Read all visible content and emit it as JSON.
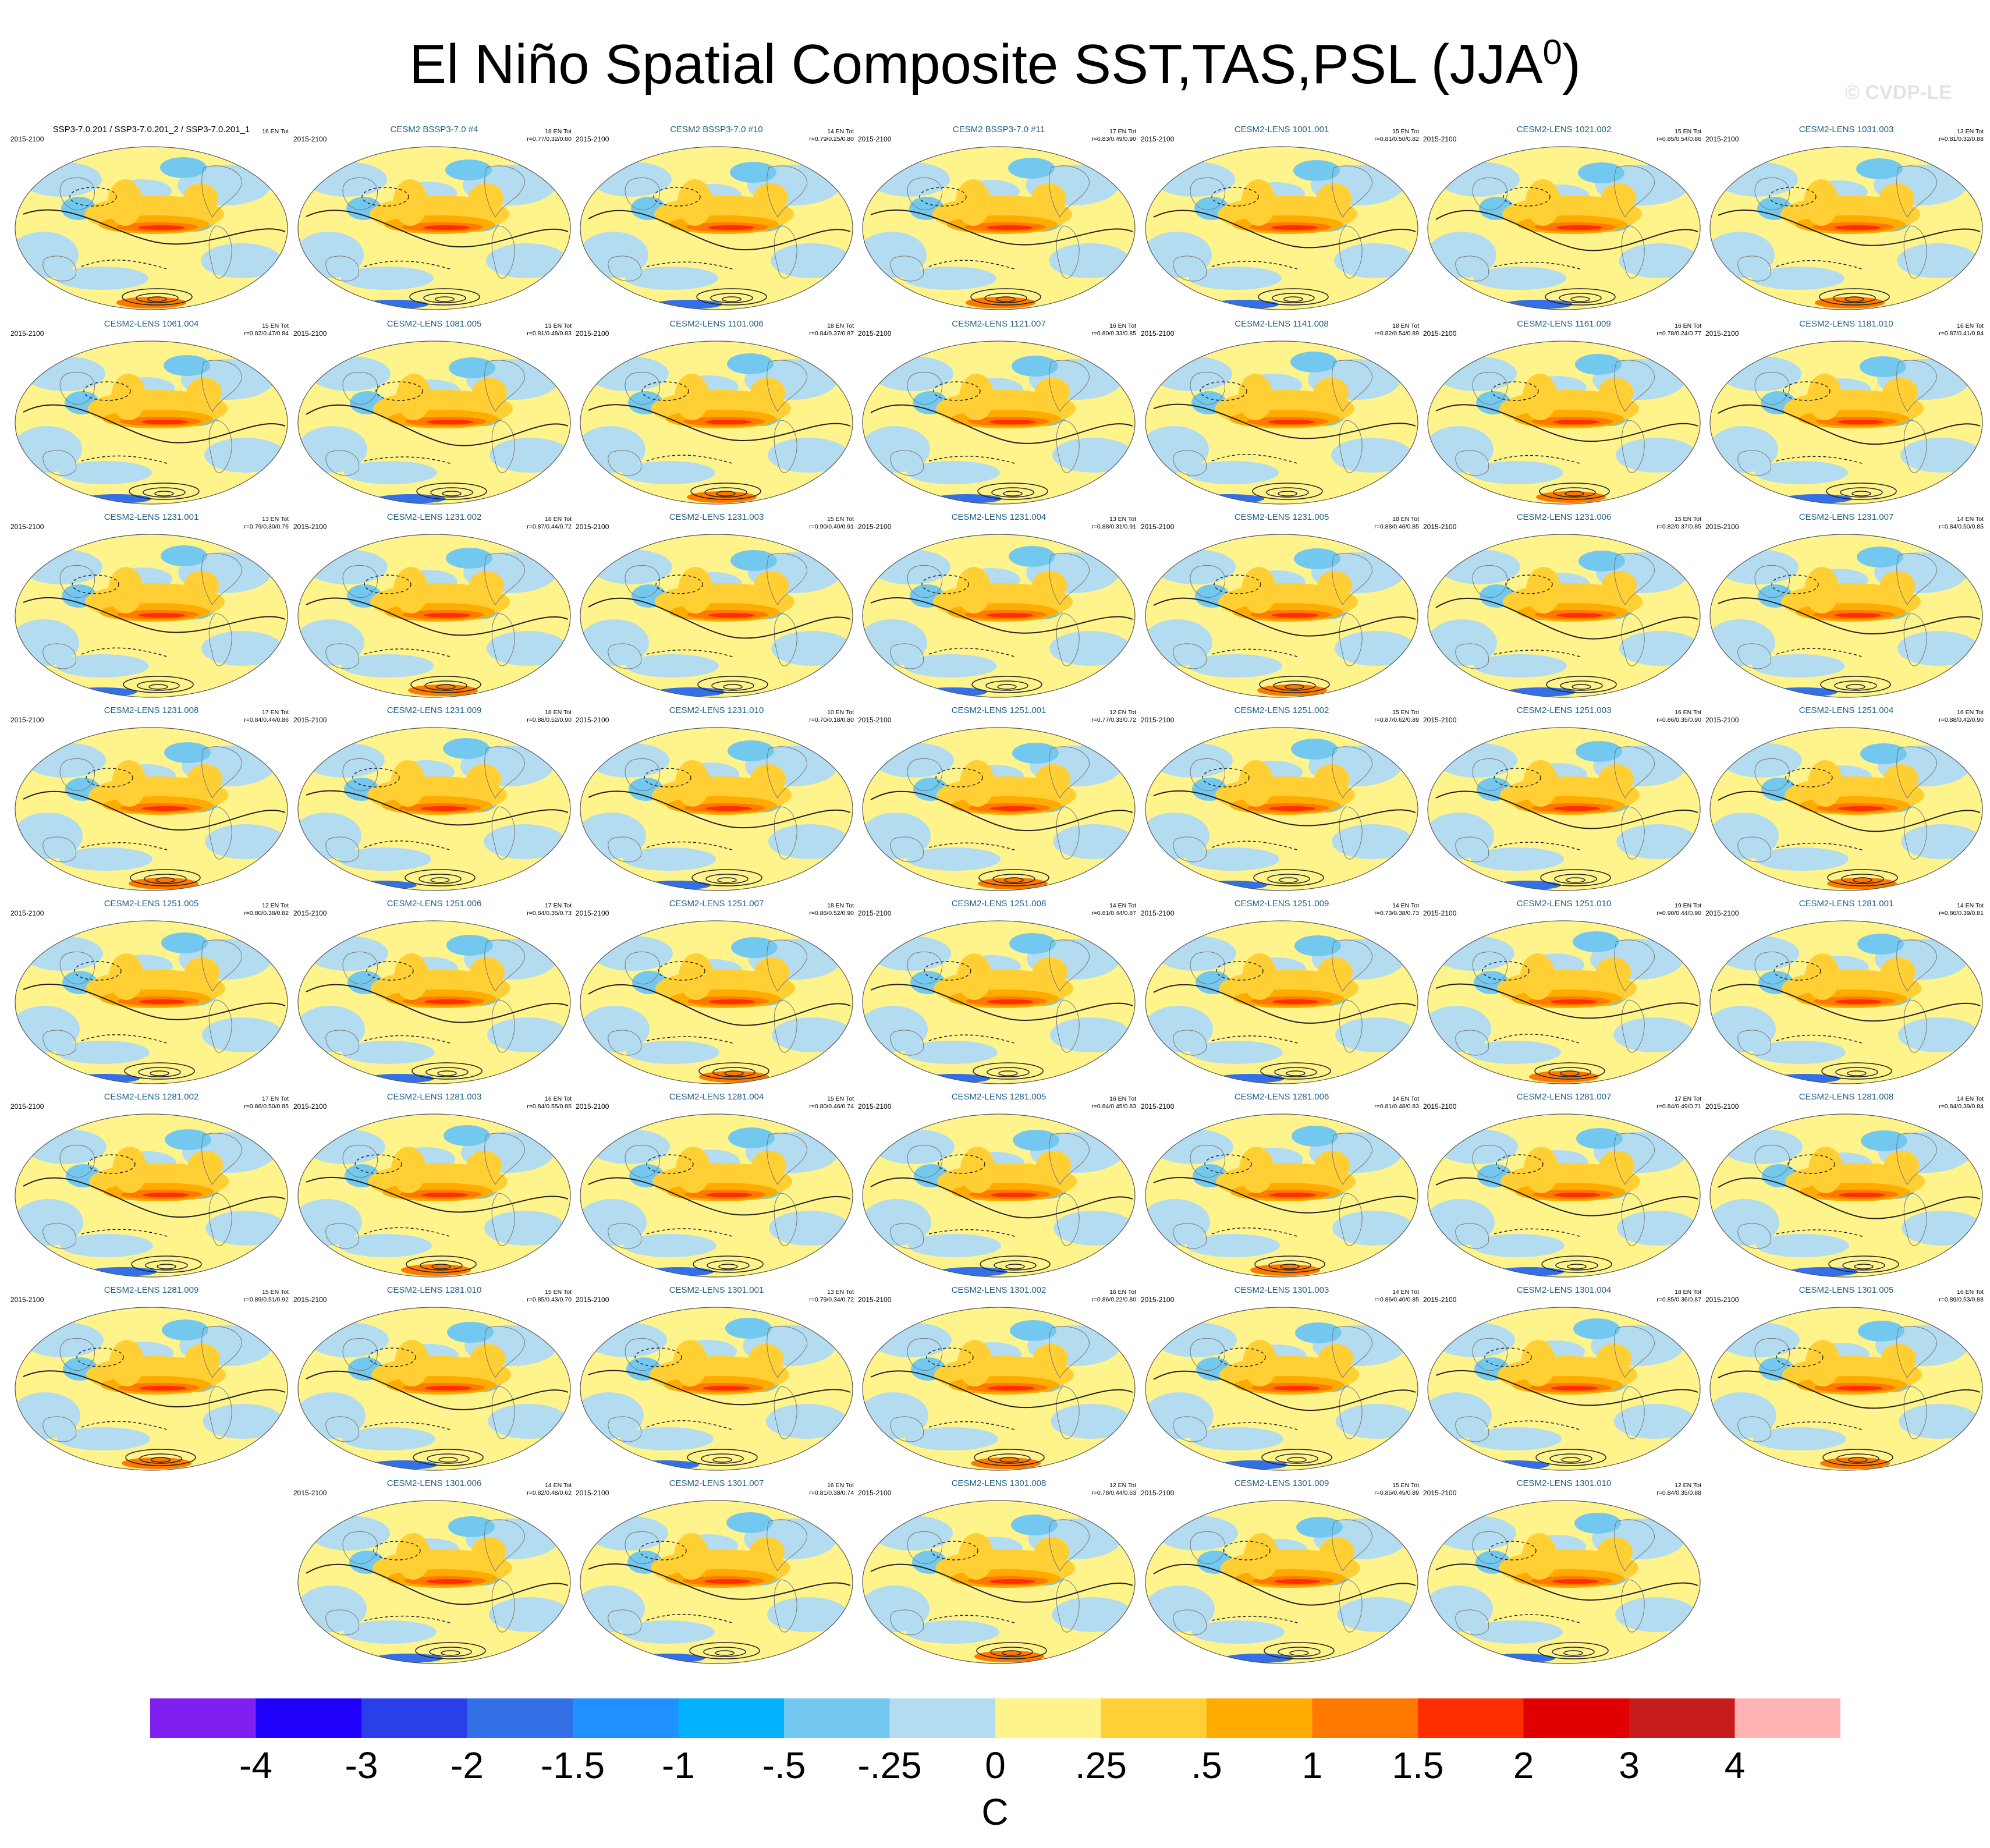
{
  "title": {
    "main": "El Niño Spatial Composite SST,TAS,PSL (JJA",
    "superscript": "0",
    "close": ")"
  },
  "watermark": "© CVDP-LE",
  "period_label": "2015-2100",
  "panels": [
    {
      "title": "SSP3-7.0.201 / SSP3-7.0.201_2 / SSP3-7.0.201_1",
      "count": "16 EN Tot",
      "corr": ""
    },
    {
      "title": "CESM2 BSSP3-7.0 #4",
      "count": "18 EN Tot",
      "corr": "r=0.77/0.32/0.80"
    },
    {
      "title": "CESM2 BSSP3-7.0 #10",
      "count": "14 EN Tot",
      "corr": "r=0.79/0.25/0.80"
    },
    {
      "title": "CESM2 BSSP3-7.0 #11",
      "count": "17 EN Tot",
      "corr": "r=0.83/0.49/0.90"
    },
    {
      "title": "CESM2-LENS 1001.001",
      "count": "15 EN Tot",
      "corr": "r=0.81/0.50/0.82"
    },
    {
      "title": "CESM2-LENS 1021.002",
      "count": "15 EN Tot",
      "corr": "r=0.85/0.54/0.86"
    },
    {
      "title": "CESM2-LENS 1031.003",
      "count": "13 EN Tot",
      "corr": "r=0.81/0.32/0.88"
    },
    {
      "title": "CESM2-LENS 1061.004",
      "count": "15 EN Tot",
      "corr": "r=0.82/0.47/0.84"
    },
    {
      "title": "CESM2-LENS 1081.005",
      "count": "13 EN Tot",
      "corr": "r=0.81/0.48/0.83"
    },
    {
      "title": "CESM2-LENS 1101.006",
      "count": "18 EN Tot",
      "corr": "r=0.84/0.37/0.87"
    },
    {
      "title": "CESM2-LENS 1121.007",
      "count": "16 EN Tot",
      "corr": "r=0.80/0.33/0.85"
    },
    {
      "title": "CESM2-LENS 1141.008",
      "count": "18 EN Tot",
      "corr": "r=0.82/0.54/0.89"
    },
    {
      "title": "CESM2-LENS 1161.009",
      "count": "16 EN Tot",
      "corr": "r=0.78/0.24/0.77"
    },
    {
      "title": "CESM2-LENS 1181.010",
      "count": "16 EN Tot",
      "corr": "r=0.87/0.41/0.84"
    },
    {
      "title": "CESM2-LENS 1231.001",
      "count": "13 EN Tot",
      "corr": "r=0.79/0.30/0.76"
    },
    {
      "title": "CESM2-LENS 1231.002",
      "count": "18 EN Tot",
      "corr": "r=0.87/0.44/0.72"
    },
    {
      "title": "CESM2-LENS 1231.003",
      "count": "15 EN Tot",
      "corr": "r=0.90/0.40/0.91"
    },
    {
      "title": "CESM2-LENS 1231.004",
      "count": "13 EN Tot",
      "corr": "r=0.88/0.31/0.91"
    },
    {
      "title": "CESM2-LENS 1231.005",
      "count": "18 EN Tot",
      "corr": "r=0.88/0.46/0.85"
    },
    {
      "title": "CESM2-LENS 1231.006",
      "count": "15 EN Tot",
      "corr": "r=0.82/0.37/0.85"
    },
    {
      "title": "CESM2-LENS 1231.007",
      "count": "14 EN Tot",
      "corr": "r=0.84/0.50/0.85"
    },
    {
      "title": "CESM2-LENS 1231.008",
      "count": "17 EN Tot",
      "corr": "r=0.84/0.44/0.86"
    },
    {
      "title": "CESM2-LENS 1231.009",
      "count": "18 EN Tot",
      "corr": "r=0.88/0.52/0.90"
    },
    {
      "title": "CESM2-LENS 1231.010",
      "count": "10 EN Tot",
      "corr": "r=0.70/0.18/0.80"
    },
    {
      "title": "CESM2-LENS 1251.001",
      "count": "12 EN Tot",
      "corr": "r=0.77/0.33/0.72"
    },
    {
      "title": "CESM2-LENS 1251.002",
      "count": "15 EN Tot",
      "corr": "r=0.87/0.62/0.89"
    },
    {
      "title": "CESM2-LENS 1251.003",
      "count": "16 EN Tot",
      "corr": "r=0.86/0.35/0.90"
    },
    {
      "title": "CESM2-LENS 1251.004",
      "count": "16 EN Tot",
      "corr": "r=0.88/0.42/0.90"
    },
    {
      "title": "CESM2-LENS 1251.005",
      "count": "12 EN Tot",
      "corr": "r=0.80/0.38/0.82"
    },
    {
      "title": "CESM2-LENS 1251.006",
      "count": "17 EN Tot",
      "corr": "r=0.84/0.35/0.73"
    },
    {
      "title": "CESM2-LENS 1251.007",
      "count": "18 EN Tot",
      "corr": "r=0.86/0.52/0.90"
    },
    {
      "title": "CESM2-LENS 1251.008",
      "count": "14 EN Tot",
      "corr": "r=0.81/0.44/0.87"
    },
    {
      "title": "CESM2-LENS 1251.009",
      "count": "14 EN Tot",
      "corr": "r=0.73/0.38/0.73"
    },
    {
      "title": "CESM2-LENS 1251.010",
      "count": "19 EN Tot",
      "corr": "r=0.90/0.44/0.90"
    },
    {
      "title": "CESM2-LENS 1281.001",
      "count": "14 EN Tot",
      "corr": "r=0.86/0.39/0.81"
    },
    {
      "title": "CESM2-LENS 1281.002",
      "count": "17 EN Tot",
      "corr": "r=0.86/0.50/0.85"
    },
    {
      "title": "CESM2-LENS 1281.003",
      "count": "16 EN Tot",
      "corr": "r=0.84/0.55/0.85"
    },
    {
      "title": "CESM2-LENS 1281.004",
      "count": "15 EN Tot",
      "corr": "r=0.80/0.46/0.74"
    },
    {
      "title": "CESM2-LENS 1281.005",
      "count": "16 EN Tot",
      "corr": "r=0.84/0.45/0.83"
    },
    {
      "title": "CESM2-LENS 1281.006",
      "count": "14 EN Tot",
      "corr": "r=0.81/0.48/0.83"
    },
    {
      "title": "CESM2-LENS 1281.007",
      "count": "17 EN Tot",
      "corr": "r=0.84/0.49/0.71"
    },
    {
      "title": "CESM2-LENS 1281.008",
      "count": "14 EN Tot",
      "corr": "r=0.84/0.39/0.84"
    },
    {
      "title": "CESM2-LENS 1281.009",
      "count": "15 EN Tot",
      "corr": "r=0.89/0.51/0.92"
    },
    {
      "title": "CESM2-LENS 1281.010",
      "count": "15 EN Tot",
      "corr": "r=0.85/0.43/0.70"
    },
    {
      "title": "CESM2-LENS 1301.001",
      "count": "13 EN Tot",
      "corr": "r=0.79/0.34/0.72"
    },
    {
      "title": "CESM2-LENS 1301.002",
      "count": "16 EN Tot",
      "corr": "r=0.86/0.22/0.80"
    },
    {
      "title": "CESM2-LENS 1301.003",
      "count": "14 EN Tot",
      "corr": "r=0.86/0.40/0.85"
    },
    {
      "title": "CESM2-LENS 1301.004",
      "count": "18 EN Tot",
      "corr": "r=0.85/0.36/0.87"
    },
    {
      "title": "CESM2-LENS 1301.005",
      "count": "16 EN Tot",
      "corr": "r=0.89/0.53/0.88"
    },
    {
      "title": "CESM2-LENS 1301.006",
      "count": "14 EN Tot",
      "corr": "r=0.82/0.48/0.62"
    },
    {
      "title": "CESM2-LENS 1301.007",
      "count": "16 EN Tot",
      "corr": "r=0.81/0.38/0.74"
    },
    {
      "title": "CESM2-LENS 1301.008",
      "count": "12 EN Tot",
      "corr": "r=0.78/0.44/0.63"
    },
    {
      "title": "CESM2-LENS 1301.009",
      "count": "15 EN Tot",
      "corr": "r=0.85/0.45/0.89"
    },
    {
      "title": "CESM2-LENS 1301.010",
      "count": "12 EN Tot",
      "corr": "r=0.84/0.35/0.88"
    }
  ],
  "colorbar": {
    "colors": [
      "#7f1ff0",
      "#1f00fb",
      "#2a3fe8",
      "#3370e8",
      "#1e90ff",
      "#00b2ff",
      "#73c8f0",
      "#b4dcf0",
      "#fff38c",
      "#ffcf33",
      "#ffab00",
      "#ff7800",
      "#ff2e00",
      "#e00000",
      "#c81b1b",
      "#ffb3b3"
    ],
    "labels": [
      "-4",
      "-3",
      "-2",
      "-1.5",
      "-1",
      "-.5",
      "-.25",
      "0",
      ".25",
      ".5",
      "1",
      "1.5",
      "2",
      "3",
      "4"
    ],
    "units": "C"
  }
}
